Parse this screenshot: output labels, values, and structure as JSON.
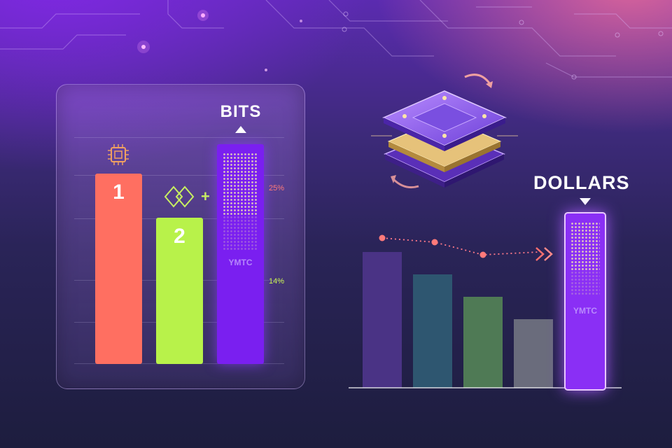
{
  "left_panel": {
    "label": "BITS",
    "bars": [
      {
        "label": "1",
        "color": "#ff6f61"
      },
      {
        "label": "2",
        "color": "#b8f24a"
      },
      {
        "label": "YMTC",
        "color": "#7a1ff0"
      }
    ],
    "plus": "+",
    "pct_high": "25%",
    "pct_low": "14%",
    "pct_high_color": "#ff7a7a",
    "pct_low_color": "#c7f050"
  },
  "right_panel": {
    "label": "DOLLARS",
    "highlight_label": "YMTC",
    "bar_colors": [
      "#4a3385",
      "#2e5670",
      "#4f7a55",
      "#6a6c7c",
      "#8a2ff5"
    ]
  },
  "icons": [
    "chip-icon",
    "linked-diamonds-icon",
    "stacked-chip-icon",
    "rotate-arrow-icon",
    "double-chevron-icon",
    "caret-up-icon",
    "caret-down-icon"
  ]
}
